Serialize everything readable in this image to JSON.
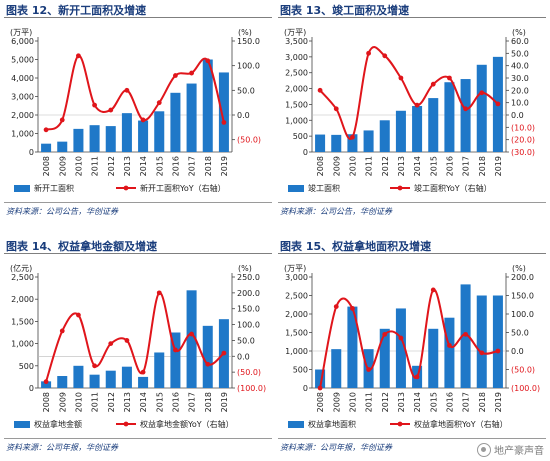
{
  "watermark": {
    "text": "地产豪声音",
    "icon": "wechat-icon"
  },
  "colors": {
    "bar": "#1f78c8",
    "line": "#e0151b",
    "title": "#1a3d7c",
    "neg_axis": "#e0151b"
  },
  "charts": [
    {
      "title": "图表 12、新开工面积及增速",
      "source": "资料来源：公司公告，华创证券",
      "chart_data": {
        "type": "bar",
        "categories": [
          "2008",
          "2009",
          "2010",
          "2011",
          "2012",
          "2013",
          "2014",
          "2015",
          "2016",
          "2017",
          "2018",
          "2019"
        ],
        "left_unit": "(万平)",
        "right_unit": "(%)",
        "ylim": [
          0,
          6000
        ],
        "yticks": [
          "6,000",
          "5,000",
          "4,000",
          "3,000",
          "2,000",
          "1,000",
          "0"
        ],
        "y2lim": [
          -75,
          150
        ],
        "y2ticks": [
          "150.0",
          "100.0",
          "50.0",
          "0.0",
          "(50.0)"
        ],
        "series": [
          {
            "name": "新开工面积",
            "kind": "bar",
            "axis": "left",
            "values": [
              450,
              560,
              1250,
              1450,
              1400,
              2100,
              1700,
              2200,
              3200,
              3700,
              5000,
              4300
            ]
          },
          {
            "name": "新开工面积YoY（右轴）",
            "kind": "line",
            "axis": "right",
            "values": [
              -30,
              -10,
              120,
              20,
              10,
              50,
              -10,
              25,
              80,
              85,
              110,
              -15
            ]
          }
        ]
      }
    },
    {
      "title": "图表 13、竣工面积及增速",
      "source": "资料来源：公司公告，华创证券",
      "chart_data": {
        "type": "bar",
        "categories": [
          "2008",
          "2009",
          "2010",
          "2011",
          "2012",
          "2013",
          "2014",
          "2015",
          "2016",
          "2017",
          "2018",
          "2019"
        ],
        "left_unit": "(万平)",
        "right_unit": "(%)",
        "ylim": [
          0,
          3500
        ],
        "yticks": [
          "3,500",
          "3,000",
          "2,500",
          "2,000",
          "1,500",
          "1,000",
          "500",
          "0"
        ],
        "y2lim": [
          -30,
          60
        ],
        "y2ticks": [
          "60.0",
          "50.0",
          "40.0",
          "30.0",
          "20.0",
          "10.0",
          "0.0",
          "(10.0)",
          "(20.0)",
          "(30.0)"
        ],
        "series": [
          {
            "name": "竣工面积",
            "kind": "bar",
            "axis": "left",
            "values": [
              550,
              540,
              560,
              680,
              1000,
              1300,
              1450,
              1700,
              2200,
              2300,
              2750,
              3000
            ]
          },
          {
            "name": "竣工面积YoY（右轴）",
            "kind": "line",
            "axis": "right",
            "values": [
              20,
              5,
              -18,
              50,
              48,
              30,
              8,
              25,
              30,
              5,
              18,
              9
            ]
          }
        ]
      }
    },
    {
      "title": "图表 14、权益拿地金额及增速",
      "source": "资料来源：公司年报，华创证券",
      "chart_data": {
        "type": "bar",
        "categories": [
          "2008",
          "2009",
          "2010",
          "2011",
          "2012",
          "2013",
          "2014",
          "2015",
          "2016",
          "2017",
          "2018",
          "2019"
        ],
        "left_unit": "(亿元)",
        "right_unit": "(%)",
        "ylim": [
          0,
          2500
        ],
        "yticks": [
          "2,500",
          "2,000",
          "1,500",
          "1,000",
          "500",
          "0"
        ],
        "y2lim": [
          -100,
          250
        ],
        "y2ticks": [
          "250.0",
          "200.0",
          "150.0",
          "100.0",
          "50.0",
          "0.0",
          "(50.0)",
          "(100.0)"
        ],
        "series": [
          {
            "name": "权益拿地金额",
            "kind": "bar",
            "axis": "left",
            "values": [
              150,
              270,
              500,
              300,
              390,
              480,
              250,
              800,
              1250,
              2200,
              1400,
              1550
            ]
          },
          {
            "name": "权益拿地金额YoY（右轴）",
            "kind": "line",
            "axis": "right",
            "values": [
              -80,
              80,
              130,
              -30,
              40,
              50,
              -50,
              200,
              20,
              70,
              -25,
              10
            ]
          }
        ]
      }
    },
    {
      "title": "图表 15、权益拿地面积及增速",
      "source": "资料来源：公司年报，华创证券",
      "chart_data": {
        "type": "bar",
        "categories": [
          "2008",
          "2009",
          "2010",
          "2011",
          "2012",
          "2013",
          "2014",
          "2015",
          "2016",
          "2017",
          "2018",
          "2019"
        ],
        "left_unit": "(万平)",
        "right_unit": "(%)",
        "ylim": [
          0,
          3000
        ],
        "yticks": [
          "3,000",
          "2,500",
          "2,000",
          "1,500",
          "1,000",
          "500",
          "0"
        ],
        "y2lim": [
          -100,
          200
        ],
        "y2ticks": [
          "200.0",
          "150.0",
          "100.0",
          "50.0",
          "0.0",
          "(50.0)",
          "(100.0)"
        ],
        "series": [
          {
            "name": "权益拿地面积",
            "kind": "bar",
            "axis": "left",
            "values": [
              500,
              1050,
              2200,
              1050,
              1600,
              2150,
              600,
              1600,
              1900,
              2800,
              2500,
              2500
            ]
          },
          {
            "name": "权益拿地面积YoY（右轴）",
            "kind": "line",
            "axis": "right",
            "values": [
              -100,
              120,
              115,
              -50,
              45,
              35,
              -70,
              165,
              15,
              45,
              -5,
              0
            ]
          }
        ]
      }
    }
  ]
}
